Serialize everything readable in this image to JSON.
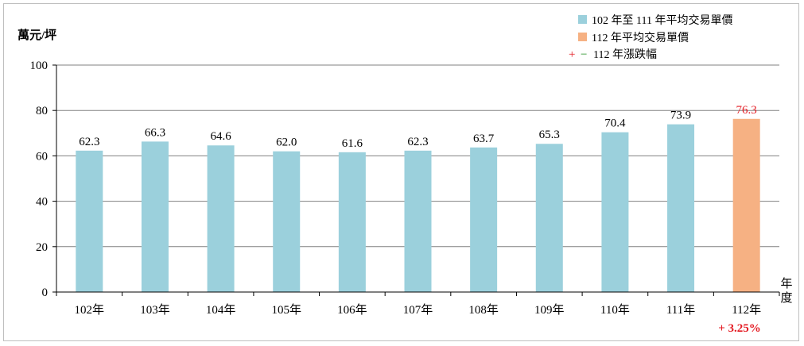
{
  "chart_data": {
    "type": "bar",
    "ylabel": "萬元/坪",
    "xlabel": "年度",
    "ylim": [
      0,
      100
    ],
    "yticks": [
      0,
      20,
      40,
      60,
      80,
      100
    ],
    "categories": [
      "102年",
      "103年",
      "104年",
      "105年",
      "106年",
      "107年",
      "108年",
      "109年",
      "110年",
      "111年",
      "112年"
    ],
    "values": [
      62.3,
      66.3,
      64.6,
      62.0,
      61.6,
      62.3,
      63.7,
      65.3,
      70.4,
      73.9,
      76.3
    ],
    "value_labels": [
      "62.3",
      "66.3",
      "64.6",
      "62.0",
      "61.6",
      "62.3",
      "63.7",
      "65.3",
      "70.4",
      "73.9",
      "76.3"
    ],
    "series": [
      {
        "name": "102 年至 111 年平均交易單價",
        "color": "#9bd0dc"
      },
      {
        "name": "112 年平均交易單價",
        "color": "#f6b183"
      }
    ],
    "legend_note_plus": "+",
    "legend_note_minus": "−",
    "legend_note_text": "112 年漲跌幅",
    "change_label": "+ 3.25%",
    "change_color": "#e41b23",
    "grid": true,
    "legend_position": "top-right"
  }
}
